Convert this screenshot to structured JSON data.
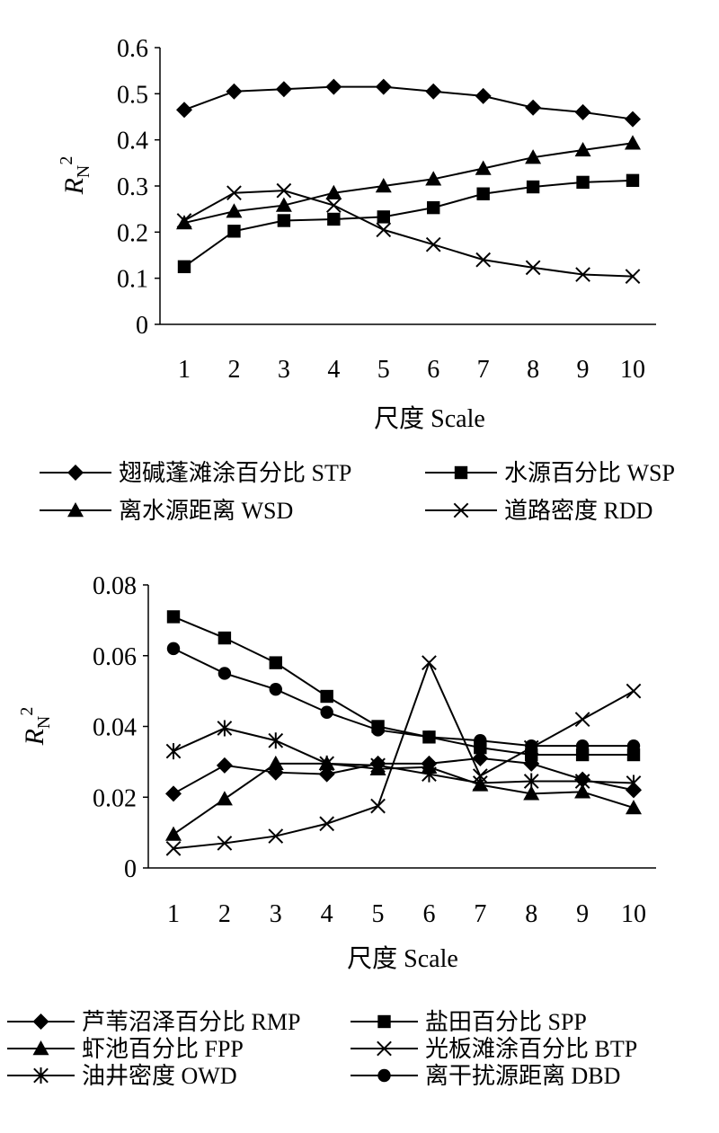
{
  "chart_data": [
    {
      "type": "line",
      "xlabel": "尺度 Scale",
      "ylabel": "R",
      "ylabel_sub": "N",
      "ylabel_sup": "2",
      "categories": [
        "1",
        "2",
        "3",
        "4",
        "5",
        "6",
        "7",
        "8",
        "9",
        "10"
      ],
      "ylim": [
        0,
        0.6
      ],
      "yticks": [
        "0",
        "0.1",
        "0.2",
        "0.3",
        "0.4",
        "0.5",
        "0.6"
      ],
      "grid": false,
      "legend_position": "bottom",
      "series": [
        {
          "name": "翅碱蓬滩涂百分比 STP",
          "marker": "diamond",
          "values": [
            0.465,
            0.505,
            0.51,
            0.515,
            0.515,
            0.505,
            0.495,
            0.47,
            0.46,
            0.445
          ]
        },
        {
          "name": "水源百分比 WSP",
          "marker": "square",
          "values": [
            0.125,
            0.202,
            0.225,
            0.228,
            0.233,
            0.253,
            0.283,
            0.298,
            0.308,
            0.312
          ]
        },
        {
          "name": "离水源距离 WSD",
          "marker": "triangle",
          "values": [
            0.22,
            0.245,
            0.258,
            0.285,
            0.3,
            0.315,
            0.338,
            0.362,
            0.378,
            0.393
          ]
        },
        {
          "name": "道路密度 RDD",
          "marker": "x",
          "values": [
            0.225,
            0.285,
            0.29,
            0.258,
            0.205,
            0.173,
            0.14,
            0.123,
            0.108,
            0.104
          ]
        }
      ]
    },
    {
      "type": "line",
      "xlabel": "尺度 Scale",
      "ylabel": "R",
      "ylabel_sub": "N",
      "ylabel_sup": "2",
      "categories": [
        "1",
        "2",
        "3",
        "4",
        "5",
        "6",
        "7",
        "8",
        "9",
        "10"
      ],
      "ylim": [
        0,
        0.08
      ],
      "yticks": [
        "0",
        "0.02",
        "0.04",
        "0.06",
        "0.08"
      ],
      "grid": false,
      "legend_position": "bottom",
      "series": [
        {
          "name": "芦苇沼泽百分比 RMP",
          "marker": "diamond",
          "values": [
            0.021,
            0.029,
            0.027,
            0.0265,
            0.0295,
            0.0295,
            0.031,
            0.0295,
            0.025,
            0.022
          ]
        },
        {
          "name": "盐田百分比 SPP",
          "marker": "square",
          "values": [
            0.071,
            0.065,
            0.058,
            0.0485,
            0.04,
            0.037,
            0.034,
            0.032,
            0.032,
            0.032
          ]
        },
        {
          "name": "虾池百分比 FPP",
          "marker": "triangle",
          "values": [
            0.0095,
            0.0195,
            0.0295,
            0.0295,
            0.028,
            0.0285,
            0.0235,
            0.021,
            0.0215,
            0.017
          ]
        },
        {
          "name": "光板滩涂百分比 BTP",
          "marker": "x",
          "values": [
            0.0055,
            0.007,
            0.009,
            0.0125,
            0.0175,
            0.058,
            0.026,
            0.034,
            0.042,
            0.05
          ]
        },
        {
          "name": "油井密度 OWD",
          "marker": "asterisk",
          "values": [
            0.033,
            0.0395,
            0.036,
            0.0295,
            0.029,
            0.0265,
            0.024,
            0.0245,
            0.0245,
            0.024
          ]
        },
        {
          "name": "离干扰源距离 DBD",
          "marker": "circle",
          "values": [
            0.062,
            0.055,
            0.0505,
            0.044,
            0.039,
            0.037,
            0.036,
            0.0345,
            0.0345,
            0.0345
          ]
        }
      ]
    }
  ]
}
